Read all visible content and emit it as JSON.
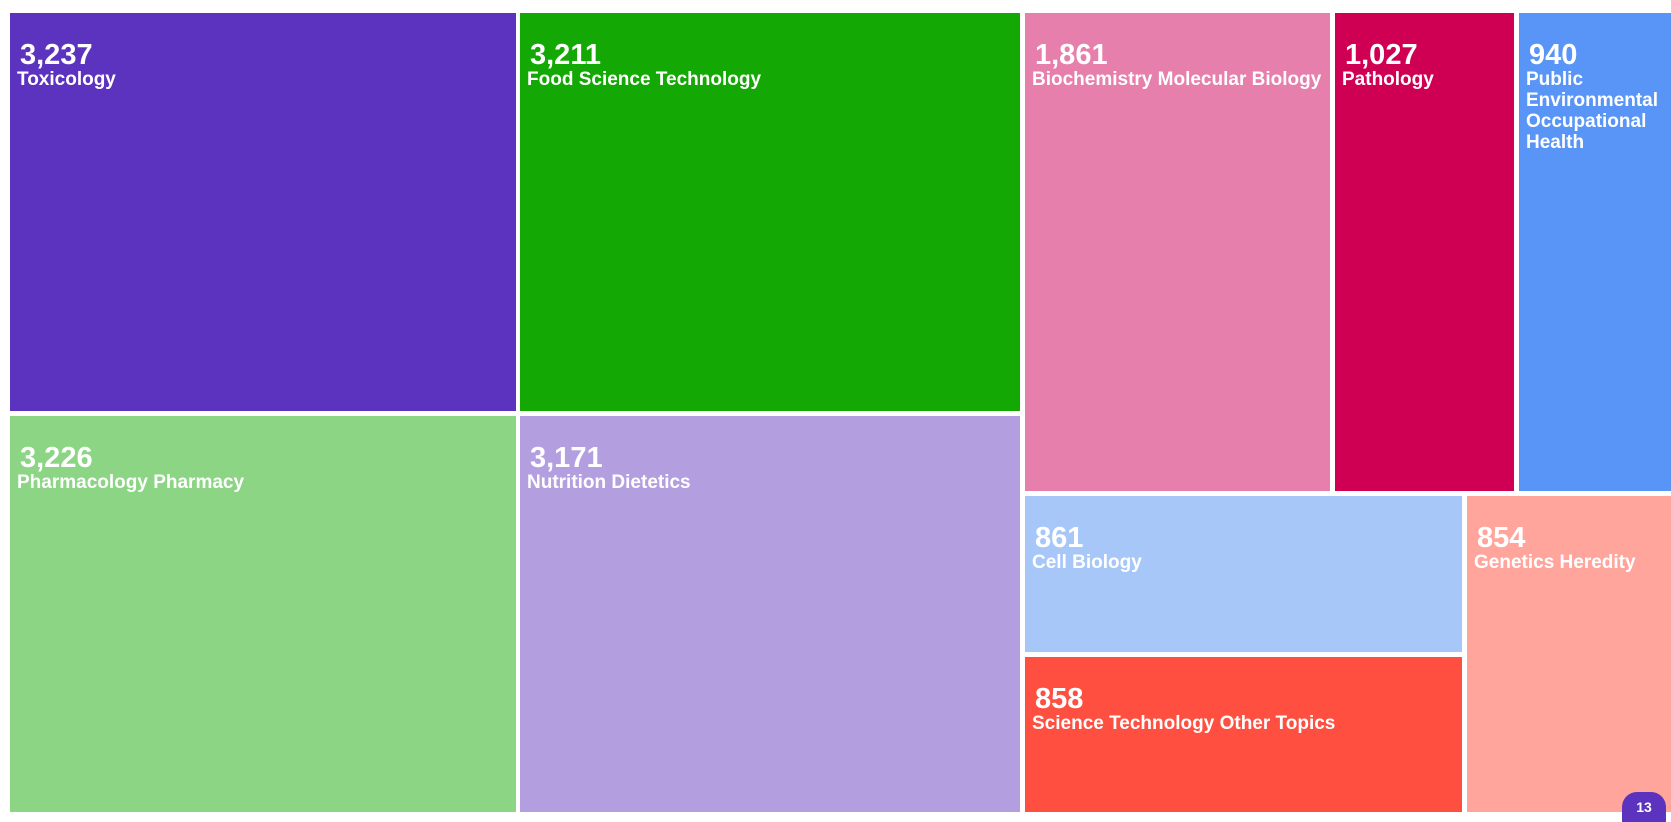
{
  "chart_data": {
    "type": "treemap",
    "items": [
      {
        "label": "Toxicology",
        "value": 3237,
        "display": "3,237",
        "color": "#5c33be"
      },
      {
        "label": "Food Science Technology",
        "value": 3211,
        "display": "3,211",
        "color": "#14a804"
      },
      {
        "label": "Pharmacology Pharmacy",
        "value": 3226,
        "display": "3,226",
        "color": "#8bd584"
      },
      {
        "label": "Nutrition Dietetics",
        "value": 3171,
        "display": "3,171",
        "color": "#b39fe0"
      },
      {
        "label": "Biochemistry Molecular Biology",
        "value": 1861,
        "display": "1,861",
        "color": "#e67fab"
      },
      {
        "label": "Pathology",
        "value": 1027,
        "display": "1,027",
        "color": "#cf0053"
      },
      {
        "label": "Public Environmental Occupational Health",
        "value": 940,
        "display": "940",
        "color": "#5995f7"
      },
      {
        "label": "Cell Biology",
        "value": 861,
        "display": "861",
        "color": "#a8c7f9"
      },
      {
        "label": "Genetics Heredity",
        "value": 854,
        "display": "854",
        "color": "#ffa59c"
      },
      {
        "label": "Science Technology Other Topics",
        "value": 858,
        "display": "858",
        "color": "#ff4f40"
      }
    ]
  },
  "page_badge": {
    "text": "13",
    "color": "#5c33be"
  }
}
